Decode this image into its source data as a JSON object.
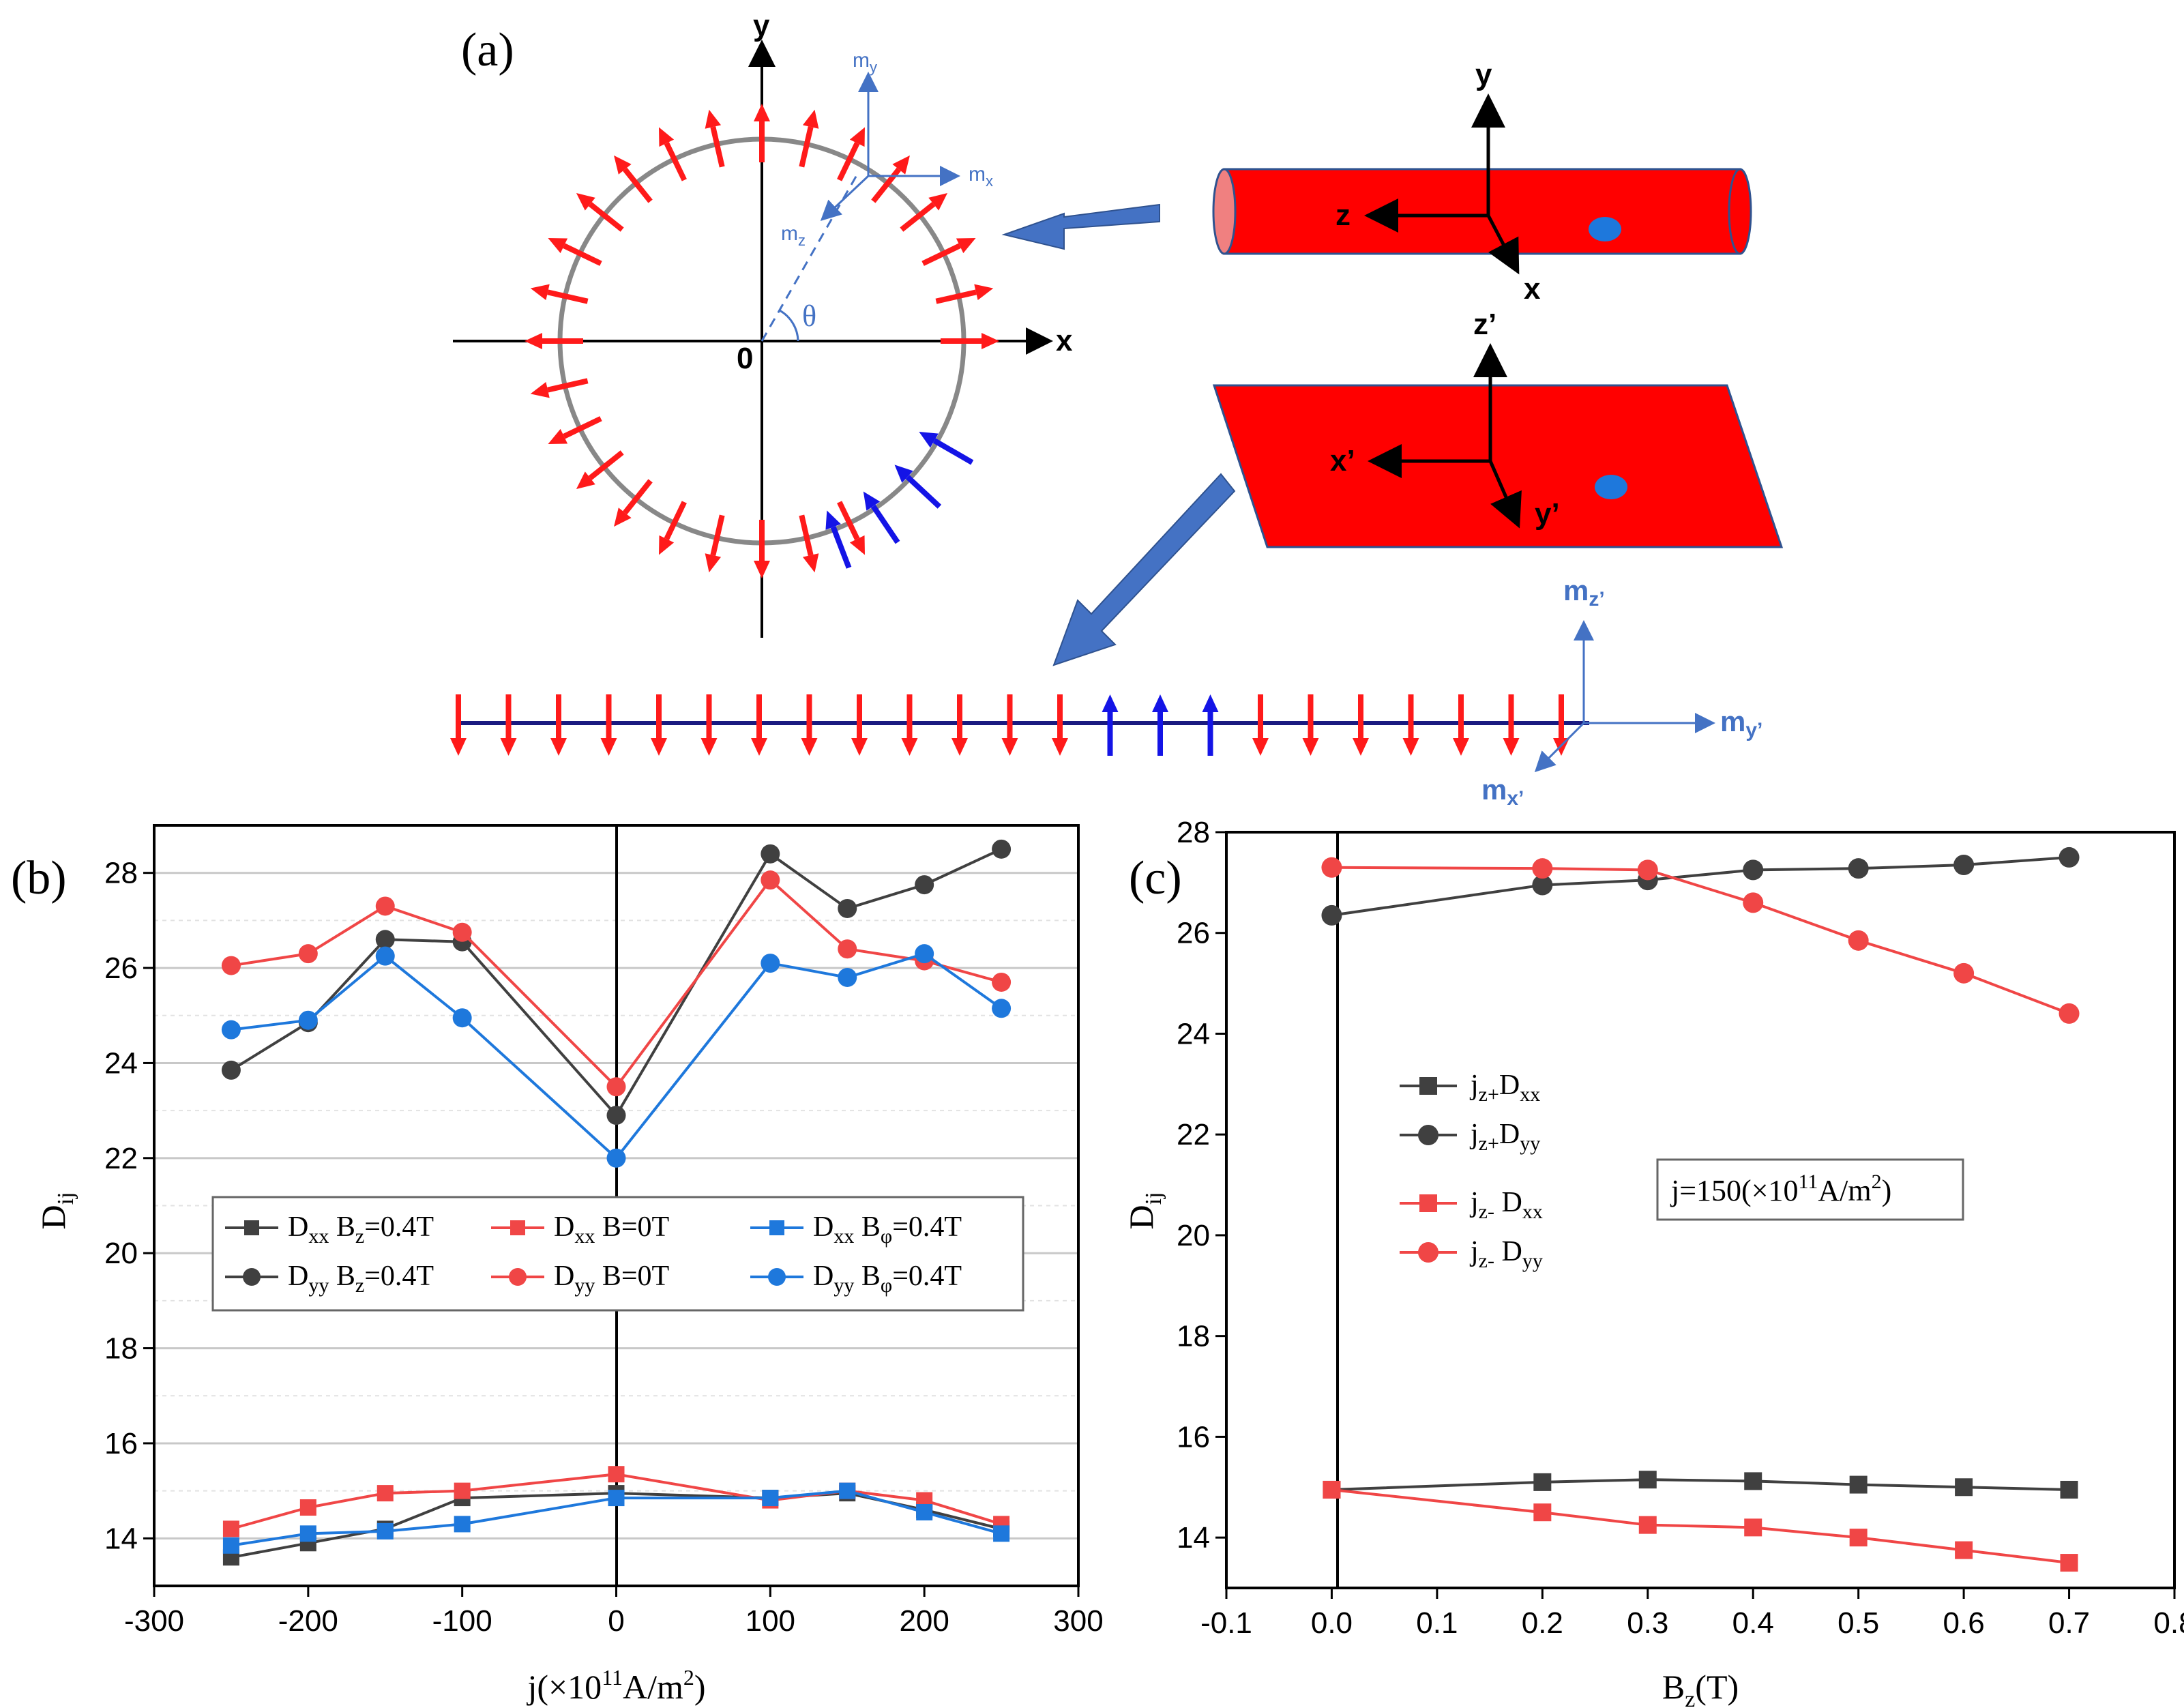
{
  "panel_a": {
    "label": "(a)",
    "circle_axes": {
      "x": "x",
      "y": "y",
      "origin": "0",
      "angle": "θ"
    },
    "circle_components": {
      "mx": "m",
      "mx_sub": "x",
      "my": "m",
      "my_sub": "y",
      "mz": "m",
      "mz_sub": "z"
    },
    "cylinder_axes": {
      "y": "y",
      "z": "z",
      "x": "x"
    },
    "plate_axes": {
      "z": "z’",
      "x": "x’",
      "y": "y’"
    },
    "chain_components": {
      "mz": "m",
      "mz_sub": "z’",
      "my": "m",
      "my_sub": "y’",
      "mx": "m",
      "mx_sub": "x’"
    },
    "circle_spins_inward_count": 4,
    "chain_spins_up_count": 3,
    "colors": {
      "spin_normal": "#ff1a1a",
      "spin_reversed": "#1414e6",
      "body": "#ff0000",
      "accent": "#4472c4"
    }
  },
  "panel_b": {
    "label": "(b)",
    "ylabel_main": "D",
    "ylabel_sub": "ij",
    "xlabel": "j(×10",
    "xlabel_sup": "11",
    "xlabel_tail": "A/m",
    "xlabel_sup2": "2",
    "xlabel_end": ")",
    "xticks": [
      "-300",
      "-200",
      "-100",
      "0",
      "100",
      "200",
      "300"
    ],
    "yticks": [
      "14",
      "16",
      "18",
      "20",
      "22",
      "24",
      "26",
      "28"
    ],
    "legend": [
      {
        "main": "D",
        "sub": "xx",
        "rest1": " B",
        "sub2": "z",
        "rest2": "=0.4T"
      },
      {
        "main": "D",
        "sub": "xx",
        "rest1": " B=0T",
        "sub2": "",
        "rest2": ""
      },
      {
        "main": "D",
        "sub": "xx",
        "rest1": " B",
        "sub2": "φ",
        "rest2": "=0.4T"
      },
      {
        "main": "D",
        "sub": "yy",
        "rest1": " B",
        "sub2": "z",
        "rest2": "=0.4T"
      },
      {
        "main": "D",
        "sub": "yy",
        "rest1": " B=0T",
        "sub2": "",
        "rest2": ""
      },
      {
        "main": "D",
        "sub": "yy",
        "rest1": " B",
        "sub2": "φ",
        "rest2": "=0.4T"
      }
    ]
  },
  "panel_c": {
    "label": "(c)",
    "ylabel_main": "D",
    "ylabel_sub": "ij",
    "xlabel_main": "B",
    "xlabel_sub": "z",
    "xlabel_tail": "(T)",
    "xticks": [
      "-0.1",
      "0.0",
      "0.1",
      "0.2",
      "0.3",
      "0.4",
      "0.5",
      "0.6",
      "0.7",
      "0.8"
    ],
    "yticks": [
      "14",
      "16",
      "18",
      "20",
      "22",
      "24",
      "26",
      "28"
    ],
    "legend": [
      {
        "main": "j",
        "sub": "z+",
        "rest": "D",
        "sub2": "xx"
      },
      {
        "main": "j",
        "sub": "z+",
        "rest": "D",
        "sub2": "yy"
      },
      {
        "main": "j",
        "sub": "z-",
        "rest": " D",
        "sub2": "xx"
      },
      {
        "main": "j",
        "sub": "z-",
        "rest": " D",
        "sub2": "yy"
      }
    ],
    "note": "j=150(×10",
    "note_sup": "11",
    "note_tail": "A/m",
    "note_sup2": "2",
    "note_end": ")"
  },
  "chart_data": [
    {
      "type": "line",
      "panel": "(b)",
      "xlabel": "j(×10^11 A/m^2)",
      "ylabel": "Dij",
      "xlim": [
        -300,
        300
      ],
      "ylim": [
        13.0,
        29.0
      ],
      "grid": true,
      "legend_position": "middle-center",
      "x": [
        -250,
        -200,
        -150,
        -100,
        0,
        100,
        150,
        200,
        250
      ],
      "series": [
        {
          "name": "Dxx Bz=0.4T",
          "color": "#404040",
          "marker": "square",
          "values": [
            13.6,
            13.9,
            14.2,
            14.85,
            14.95,
            14.85,
            14.95,
            14.6,
            14.2
          ]
        },
        {
          "name": "Dxx B=0T",
          "color": "#f04646",
          "marker": "square",
          "values": [
            14.2,
            14.65,
            14.95,
            15.0,
            15.35,
            14.8,
            15.0,
            14.8,
            14.3
          ]
        },
        {
          "name": "Dxx Bφ=0.4T",
          "color": "#1e78dc",
          "marker": "square",
          "values": [
            13.85,
            14.1,
            14.15,
            14.3,
            14.85,
            14.85,
            15.0,
            14.55,
            14.1
          ]
        },
        {
          "name": "Dyy Bz=0.4T",
          "color": "#404040",
          "marker": "circle",
          "values": [
            23.85,
            24.85,
            26.6,
            26.55,
            22.9,
            28.4,
            27.25,
            27.75,
            28.5
          ]
        },
        {
          "name": "Dyy B=0T",
          "color": "#f04646",
          "marker": "circle",
          "values": [
            26.05,
            26.3,
            27.3,
            26.75,
            23.5,
            27.85,
            26.4,
            26.15,
            25.7
          ]
        },
        {
          "name": "Dyy Bφ=0.4T",
          "color": "#1e78dc",
          "marker": "circle",
          "values": [
            24.7,
            24.9,
            26.25,
            24.95,
            22.0,
            26.1,
            25.8,
            26.3,
            25.15
          ]
        }
      ]
    },
    {
      "type": "line",
      "panel": "(c)",
      "xlabel": "Bz(T)",
      "ylabel": "Dij",
      "xlim": [
        -0.1,
        0.8
      ],
      "ylim": [
        13.0,
        28.0
      ],
      "grid": false,
      "legend_position": "middle-left",
      "x": [
        0.0,
        0.2,
        0.3,
        0.4,
        0.5,
        0.6,
        0.7
      ],
      "series": [
        {
          "name": "jz+Dxx",
          "color": "#404040",
          "marker": "square",
          "values": [
            14.95,
            15.1,
            15.15,
            15.12,
            15.05,
            15.0,
            14.95
          ]
        },
        {
          "name": "jz+Dyy",
          "color": "#404040",
          "marker": "circle",
          "values": [
            26.35,
            26.95,
            27.05,
            27.25,
            27.28,
            27.35,
            27.5
          ]
        },
        {
          "name": "jz- Dxx",
          "color": "#f04646",
          "marker": "square",
          "values": [
            14.95,
            14.5,
            14.25,
            14.2,
            14.0,
            13.75,
            13.5
          ]
        },
        {
          "name": "jz- Dyy",
          "color": "#f04646",
          "marker": "circle",
          "values": [
            27.3,
            27.28,
            27.25,
            26.6,
            25.85,
            25.2,
            24.4
          ]
        }
      ]
    }
  ]
}
